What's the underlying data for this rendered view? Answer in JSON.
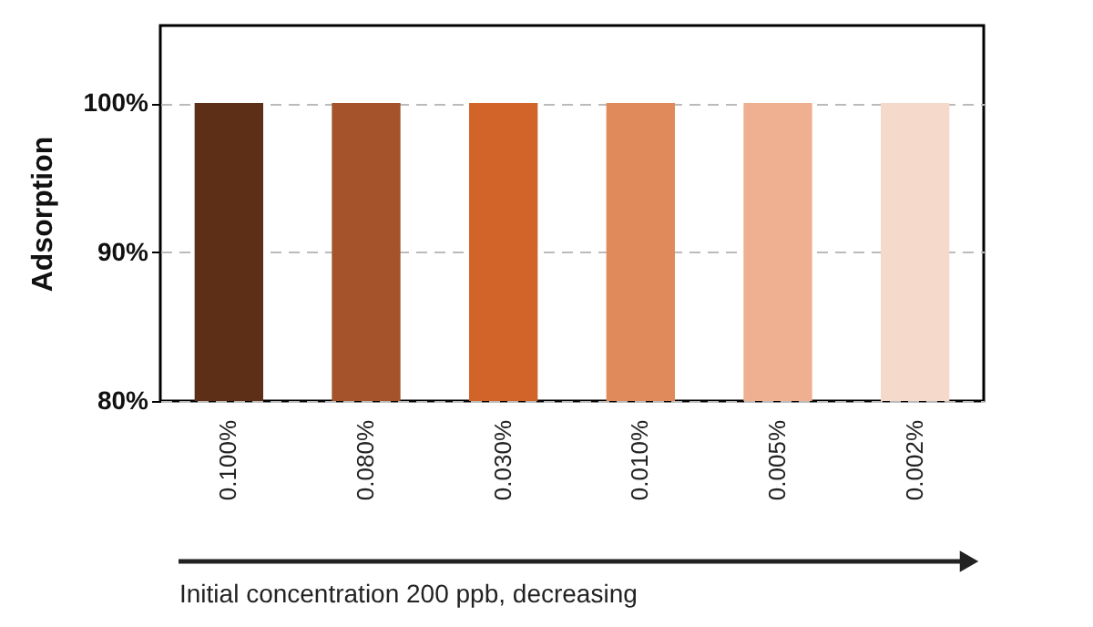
{
  "chart_data": {
    "type": "bar",
    "categories": [
      "0.100%",
      "0.080%",
      "0.030%",
      "0.010%",
      "0.005%",
      "0.002%"
    ],
    "values": [
      100,
      100,
      100,
      100,
      100,
      100
    ],
    "colors": [
      "#5e2f17",
      "#a4532a",
      "#d2642a",
      "#e08a5c",
      "#eeb090",
      "#f5d9cb"
    ],
    "ylabel": "Adsorption",
    "xlabel": "Initial concentration 200 ppb, decreasing",
    "ylim": [
      80,
      105.2
    ],
    "yticks": [
      {
        "value": 80,
        "label": "80%"
      },
      {
        "value": 90,
        "label": "90%"
      },
      {
        "value": 100,
        "label": "100%"
      }
    ],
    "grid": "y"
  }
}
